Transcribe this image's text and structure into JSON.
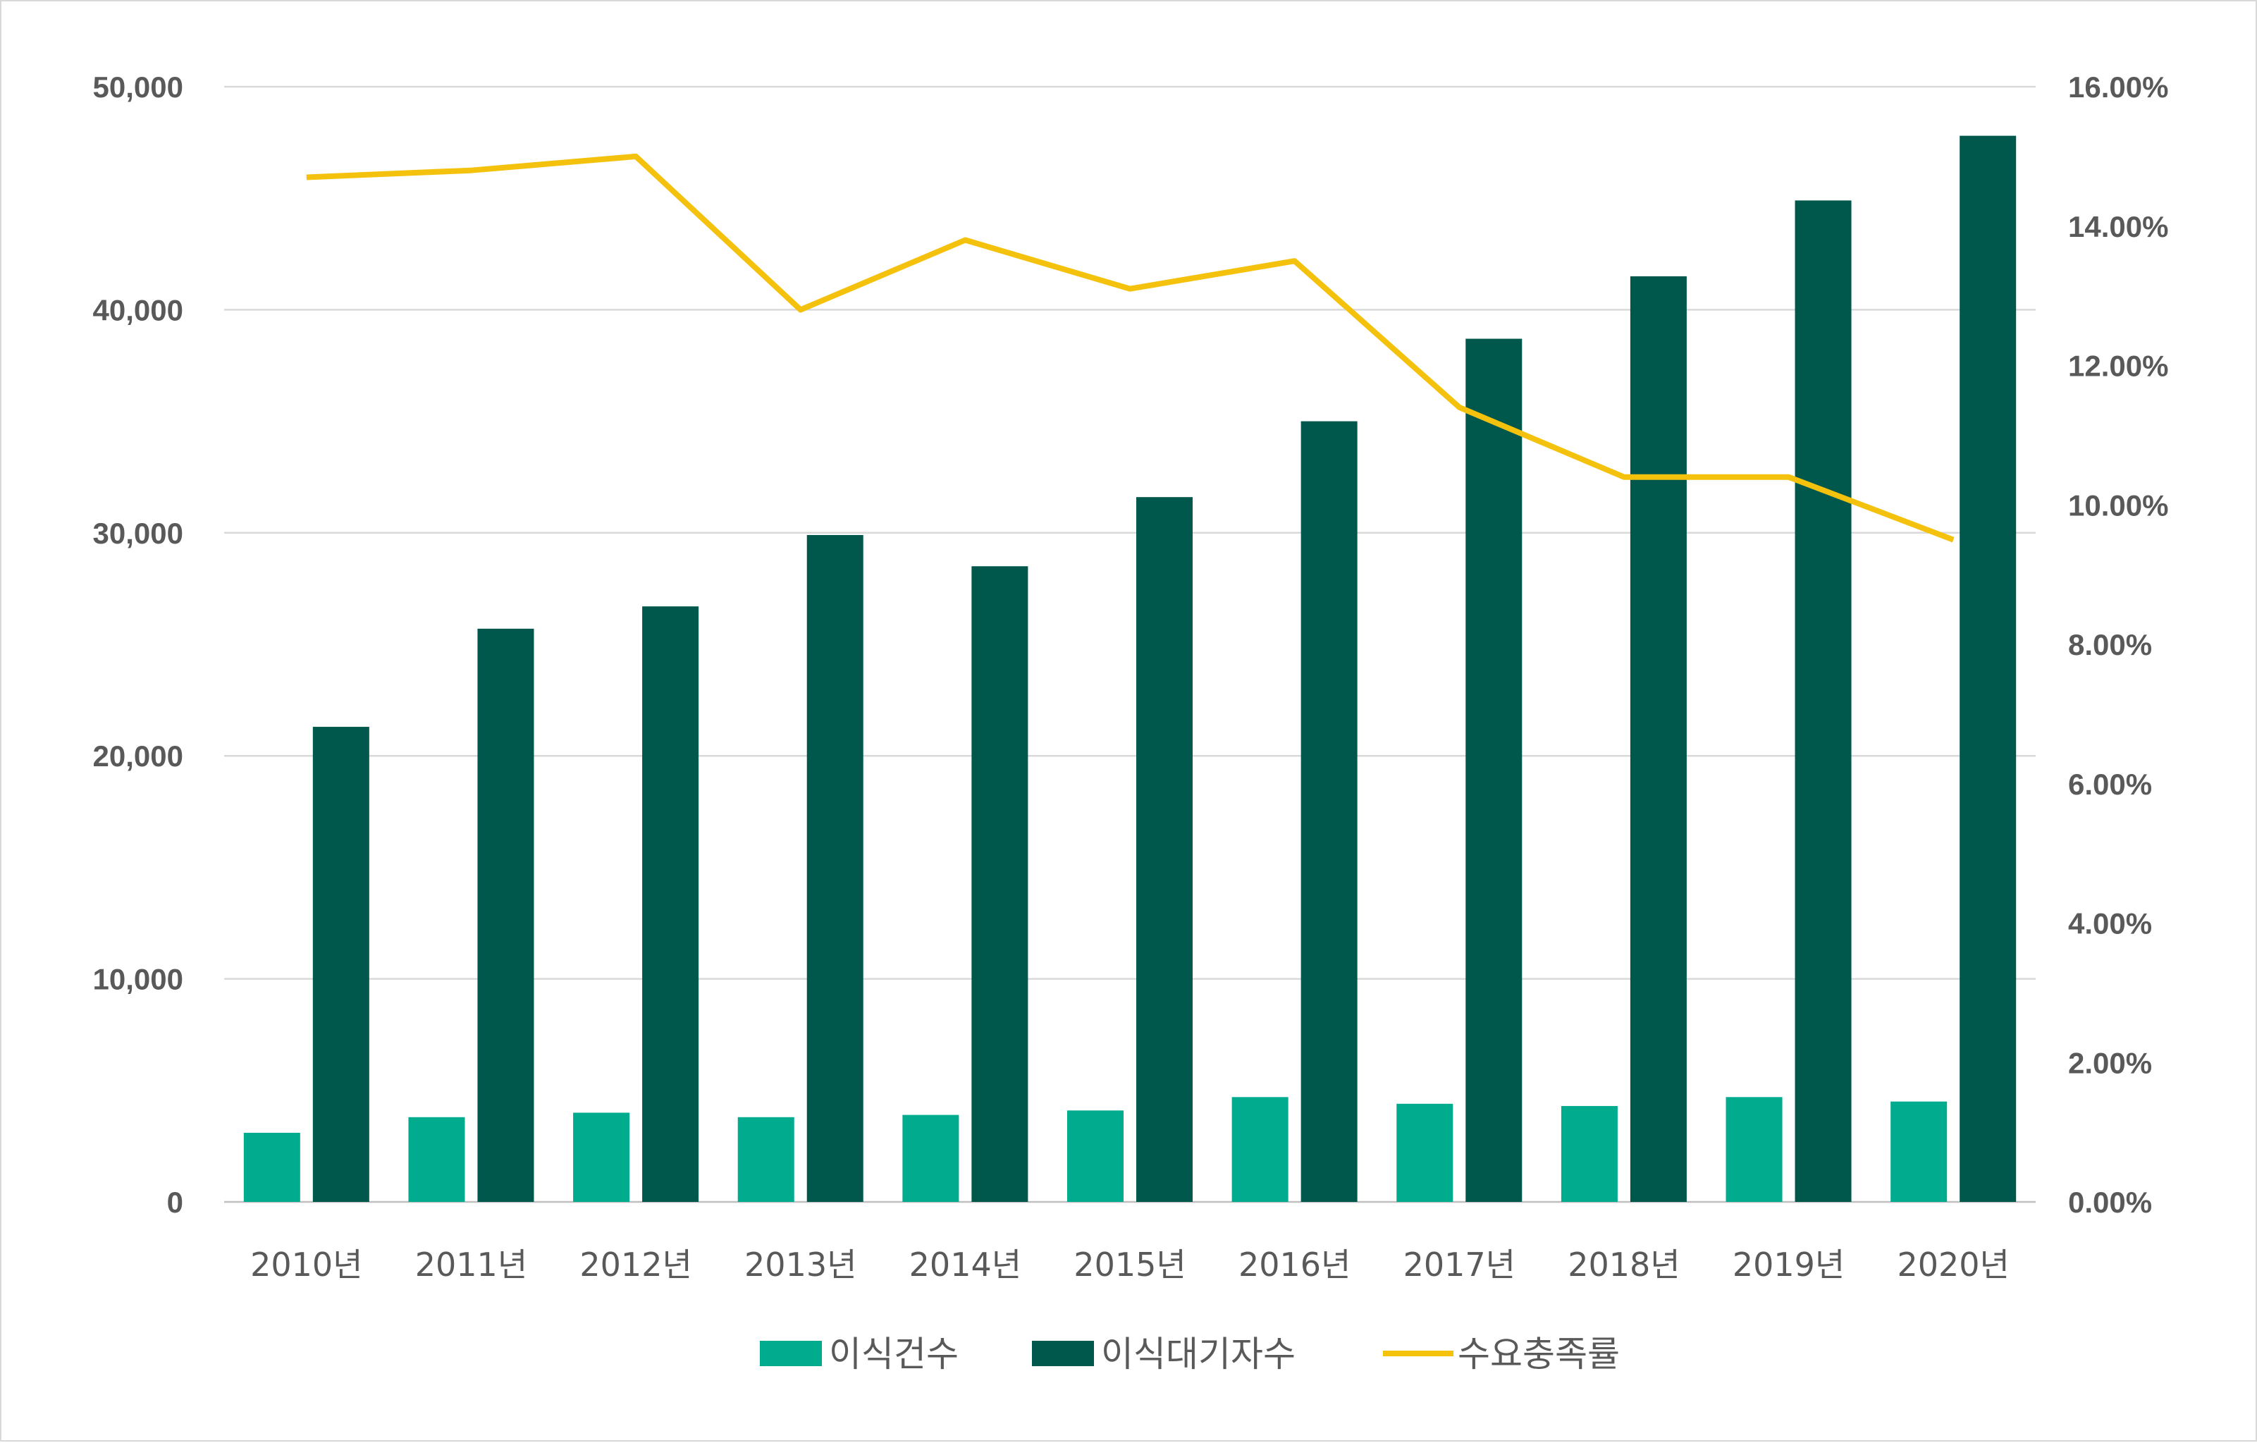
{
  "chart_data": {
    "type": "bar",
    "categories": [
      "2010년",
      "2011년",
      "2012년",
      "2013년",
      "2014년",
      "2015년",
      "2016년",
      "2017년",
      "2018년",
      "2019년",
      "2020년"
    ],
    "series": [
      {
        "name": "이식건수",
        "type": "bar",
        "axis": "left",
        "color": "#00ab8e",
        "values": [
          3100,
          3800,
          4000,
          3800,
          3900,
          4100,
          4700,
          4400,
          4300,
          4700,
          4500
        ]
      },
      {
        "name": "이식대기자수",
        "type": "bar",
        "axis": "left",
        "color": "#00574b",
        "values": [
          21300,
          25700,
          26700,
          29900,
          28500,
          31600,
          35000,
          38700,
          41500,
          44900,
          47800
        ]
      },
      {
        "name": "수요충족률",
        "type": "line",
        "axis": "right",
        "color": "#f4c20d",
        "values": [
          0.147,
          0.148,
          0.15,
          0.128,
          0.138,
          0.131,
          0.135,
          0.114,
          0.104,
          0.104,
          0.095
        ]
      }
    ],
    "left_axis": {
      "ylim": [
        0,
        50000
      ],
      "ticks": [
        0,
        10000,
        20000,
        30000,
        40000,
        50000
      ],
      "tick_labels": [
        "0",
        "10,000",
        "20,000",
        "30,000",
        "40,000",
        "50,000"
      ]
    },
    "right_axis": {
      "ylim": [
        0,
        0.16
      ],
      "ticks": [
        0,
        0.02,
        0.04,
        0.06,
        0.08,
        0.1,
        0.12,
        0.14,
        0.16
      ],
      "tick_labels": [
        "0.00%",
        "2.00%",
        "4.00%",
        "6.00%",
        "8.00%",
        "10.00%",
        "12.00%",
        "14.00%",
        "16.00%"
      ]
    },
    "grid": true,
    "legend_position": "bottom",
    "title": "",
    "xlabel": "",
    "ylabel": ""
  }
}
